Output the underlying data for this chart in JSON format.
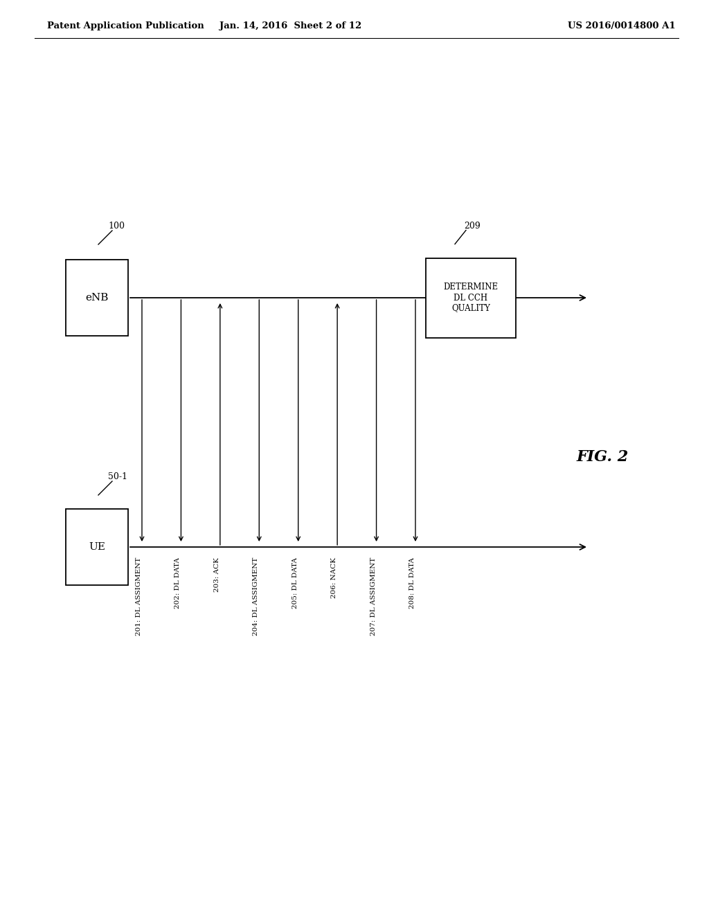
{
  "bg_color": "#ffffff",
  "header_left": "Patent Application Publication",
  "header_mid": "Jan. 14, 2016  Sheet 2 of 12",
  "header_right": "US 2016/0014800 A1",
  "fig_label": "FIG. 2",
  "enb_label": "eNB",
  "enb_ref": "100",
  "ue_label": "UE",
  "ue_ref": "50-1",
  "box_209_label": "DETERMINE\nDL CCH\nQUALITY",
  "box_209_ref": "209",
  "messages": [
    {
      "id": "201",
      "text": "201: DL ASSIGMENT",
      "direction": "down"
    },
    {
      "id": "202",
      "text": "202: DL DATA",
      "direction": "down"
    },
    {
      "id": "203",
      "text": "203: ACK",
      "direction": "up"
    },
    {
      "id": "204",
      "text": "204: DL ASSIGMENT",
      "direction": "down"
    },
    {
      "id": "205",
      "text": "205: DL DATA",
      "direction": "down"
    },
    {
      "id": "206",
      "text": "206: NACK",
      "direction": "up"
    },
    {
      "id": "207",
      "text": "207: DL ASSIGMENT",
      "direction": "down"
    },
    {
      "id": "208",
      "text": "208: DL DATA",
      "direction": "down"
    }
  ]
}
